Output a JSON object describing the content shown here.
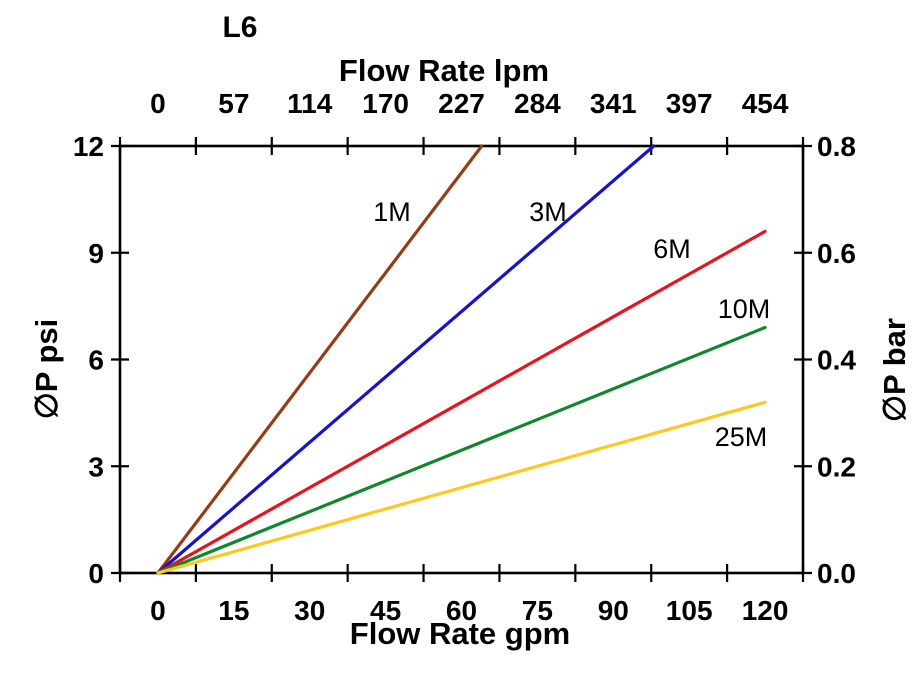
{
  "chart_data": {
    "type": "line",
    "title": "L6",
    "grid": false,
    "legend": "inline-labels-on-lines",
    "axes": {
      "top": {
        "label": "Flow Rate lpm",
        "tick_labels": [
          "0",
          "57",
          "114",
          "170",
          "227",
          "284",
          "341",
          "397",
          "454"
        ],
        "range": [
          0,
          454
        ]
      },
      "bottom": {
        "label": "Flow Rate gpm",
        "tick_labels": [
          "0",
          "15",
          "30",
          "45",
          "60",
          "75",
          "90",
          "105",
          "120"
        ],
        "range": [
          0,
          120
        ]
      },
      "left": {
        "label": "∅P psi",
        "tick_labels": [
          "0",
          "3",
          "6",
          "9",
          "12"
        ],
        "range": [
          0,
          12
        ]
      },
      "right": {
        "label": "∅P bar",
        "tick_labels": [
          "0.0",
          "0.2",
          "0.4",
          "0.6",
          "0.8"
        ],
        "range": [
          0,
          0.8
        ]
      }
    },
    "series": [
      {
        "name": "1M",
        "color": "#963C14",
        "points_gpm_psi": [
          [
            0,
            0
          ],
          [
            64,
            12
          ]
        ]
      },
      {
        "name": "3M",
        "color": "#1414CE",
        "points_gpm_psi": [
          [
            0,
            0
          ],
          [
            98,
            12
          ]
        ]
      },
      {
        "name": "6M",
        "color": "#E6141E",
        "points_gpm_psi": [
          [
            0,
            0
          ],
          [
            120,
            9.6
          ]
        ]
      },
      {
        "name": "10M",
        "color": "#0F872D",
        "points_gpm_psi": [
          [
            0,
            0
          ],
          [
            120,
            6.9
          ]
        ]
      },
      {
        "name": "25M",
        "color": "#FFC81E",
        "points_gpm_psi": [
          [
            0,
            0
          ],
          [
            120,
            4.8
          ]
        ]
      }
    ],
    "axis_color": "#000000",
    "background_color": "#ffffff"
  }
}
